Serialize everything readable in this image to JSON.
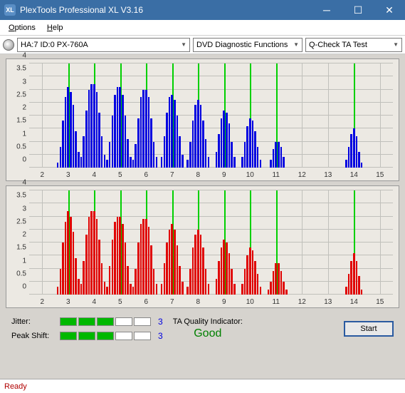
{
  "window": {
    "title": "PlexTools Professional XL V3.16"
  },
  "menu": {
    "options": "Options",
    "help": "Help"
  },
  "toolbar": {
    "drive": "HA:7 ID:0   PX-760A",
    "func": "DVD Diagnostic Functions",
    "test": "Q-Check TA Test"
  },
  "chart": {
    "ylim": [
      0,
      4
    ],
    "yticks": [
      0,
      0.5,
      1,
      1.5,
      2,
      2.5,
      3,
      3.5,
      4
    ],
    "xlim": [
      1.5,
      15.5
    ],
    "xticks": [
      2,
      3,
      4,
      5,
      6,
      7,
      8,
      9,
      10,
      11,
      12,
      13,
      14,
      15
    ],
    "greenlines": [
      3,
      4,
      5,
      6,
      7,
      8,
      9,
      10,
      11,
      14
    ],
    "barwidth": 0.07,
    "top": {
      "color": "#0000e0",
      "bars": [
        [
          2.6,
          0.2
        ],
        [
          2.7,
          0.8
        ],
        [
          2.8,
          1.8
        ],
        [
          2.9,
          2.7
        ],
        [
          3.0,
          3.1
        ],
        [
          3.1,
          2.9
        ],
        [
          3.2,
          2.4
        ],
        [
          3.3,
          1.4
        ],
        [
          3.4,
          0.6
        ],
        [
          3.5,
          0.4
        ],
        [
          3.6,
          1.2
        ],
        [
          3.7,
          2.2
        ],
        [
          3.8,
          3.0
        ],
        [
          3.9,
          3.2
        ],
        [
          4.0,
          3.2
        ],
        [
          4.1,
          2.9
        ],
        [
          4.2,
          2.1
        ],
        [
          4.3,
          1.2
        ],
        [
          4.4,
          0.5
        ],
        [
          4.5,
          0.3
        ],
        [
          4.6,
          1.0
        ],
        [
          4.7,
          2.0
        ],
        [
          4.8,
          2.8
        ],
        [
          4.9,
          3.1
        ],
        [
          5.0,
          3.1
        ],
        [
          5.1,
          2.8
        ],
        [
          5.2,
          2.0
        ],
        [
          5.3,
          1.1
        ],
        [
          5.4,
          0.4
        ],
        [
          5.5,
          0.3
        ],
        [
          5.6,
          0.9
        ],
        [
          5.7,
          1.9
        ],
        [
          5.8,
          2.7
        ],
        [
          5.9,
          3.0
        ],
        [
          6.0,
          3.0
        ],
        [
          6.1,
          2.7
        ],
        [
          6.2,
          1.9
        ],
        [
          6.3,
          1.0
        ],
        [
          6.4,
          0.4
        ],
        [
          6.6,
          0.4
        ],
        [
          6.7,
          1.2
        ],
        [
          6.8,
          2.1
        ],
        [
          6.9,
          2.7
        ],
        [
          7.0,
          2.8
        ],
        [
          7.1,
          2.6
        ],
        [
          7.2,
          2.0
        ],
        [
          7.3,
          1.2
        ],
        [
          7.4,
          0.5
        ],
        [
          7.6,
          0.3
        ],
        [
          7.7,
          1.0
        ],
        [
          7.8,
          1.8
        ],
        [
          7.9,
          2.4
        ],
        [
          8.0,
          2.6
        ],
        [
          8.1,
          2.4
        ],
        [
          8.2,
          1.8
        ],
        [
          8.3,
          1.1
        ],
        [
          8.4,
          0.4
        ],
        [
          8.7,
          0.6
        ],
        [
          8.8,
          1.3
        ],
        [
          8.9,
          1.9
        ],
        [
          9.0,
          2.2
        ],
        [
          9.1,
          2.1
        ],
        [
          9.2,
          1.7
        ],
        [
          9.3,
          1.0
        ],
        [
          9.4,
          0.4
        ],
        [
          9.7,
          0.4
        ],
        [
          9.8,
          1.0
        ],
        [
          9.9,
          1.6
        ],
        [
          10.0,
          1.9
        ],
        [
          10.1,
          1.8
        ],
        [
          10.2,
          1.4
        ],
        [
          10.3,
          0.8
        ],
        [
          10.4,
          0.3
        ],
        [
          10.8,
          0.3
        ],
        [
          10.9,
          0.7
        ],
        [
          11.0,
          1.0
        ],
        [
          11.1,
          1.0
        ],
        [
          11.2,
          0.8
        ],
        [
          11.3,
          0.4
        ],
        [
          13.7,
          0.3
        ],
        [
          13.8,
          0.8
        ],
        [
          13.9,
          1.3
        ],
        [
          14.0,
          1.5
        ],
        [
          14.1,
          1.2
        ],
        [
          14.2,
          0.6
        ],
        [
          14.3,
          0.2
        ]
      ]
    },
    "bottom": {
      "color": "#e00000",
      "bars": [
        [
          2.6,
          0.3
        ],
        [
          2.7,
          1.0
        ],
        [
          2.8,
          2.0
        ],
        [
          2.9,
          2.8
        ],
        [
          3.0,
          3.2
        ],
        [
          3.1,
          3.0
        ],
        [
          3.2,
          2.4
        ],
        [
          3.3,
          1.4
        ],
        [
          3.4,
          0.6
        ],
        [
          3.5,
          0.4
        ],
        [
          3.6,
          1.3
        ],
        [
          3.7,
          2.3
        ],
        [
          3.8,
          3.0
        ],
        [
          3.9,
          3.2
        ],
        [
          4.0,
          3.2
        ],
        [
          4.1,
          2.9
        ],
        [
          4.2,
          2.1
        ],
        [
          4.3,
          1.2
        ],
        [
          4.4,
          0.5
        ],
        [
          4.5,
          0.3
        ],
        [
          4.6,
          1.1
        ],
        [
          4.7,
          2.1
        ],
        [
          4.8,
          2.8
        ],
        [
          4.9,
          3.0
        ],
        [
          5.0,
          3.0
        ],
        [
          5.1,
          2.7
        ],
        [
          5.2,
          2.0
        ],
        [
          5.3,
          1.1
        ],
        [
          5.4,
          0.4
        ],
        [
          5.5,
          0.3
        ],
        [
          5.6,
          1.0
        ],
        [
          5.7,
          2.0
        ],
        [
          5.8,
          2.7
        ],
        [
          5.9,
          2.9
        ],
        [
          6.0,
          2.9
        ],
        [
          6.1,
          2.6
        ],
        [
          6.2,
          1.9
        ],
        [
          6.3,
          1.0
        ],
        [
          6.4,
          0.4
        ],
        [
          6.6,
          0.4
        ],
        [
          6.7,
          1.2
        ],
        [
          6.8,
          2.0
        ],
        [
          6.9,
          2.5
        ],
        [
          7.0,
          2.7
        ],
        [
          7.1,
          2.5
        ],
        [
          7.2,
          1.9
        ],
        [
          7.3,
          1.1
        ],
        [
          7.4,
          0.5
        ],
        [
          7.6,
          0.3
        ],
        [
          7.7,
          1.0
        ],
        [
          7.8,
          1.8
        ],
        [
          7.9,
          2.3
        ],
        [
          8.0,
          2.5
        ],
        [
          8.1,
          2.3
        ],
        [
          8.2,
          1.8
        ],
        [
          8.3,
          1.0
        ],
        [
          8.4,
          0.4
        ],
        [
          8.7,
          0.6
        ],
        [
          8.8,
          1.3
        ],
        [
          8.9,
          1.8
        ],
        [
          9.0,
          2.1
        ],
        [
          9.1,
          2.0
        ],
        [
          9.2,
          1.6
        ],
        [
          9.3,
          1.0
        ],
        [
          9.4,
          0.4
        ],
        [
          9.7,
          0.4
        ],
        [
          9.8,
          1.0
        ],
        [
          9.9,
          1.5
        ],
        [
          10.0,
          1.8
        ],
        [
          10.1,
          1.7
        ],
        [
          10.2,
          1.3
        ],
        [
          10.3,
          0.8
        ],
        [
          10.4,
          0.3
        ],
        [
          10.7,
          0.2
        ],
        [
          10.8,
          0.5
        ],
        [
          10.9,
          0.9
        ],
        [
          11.0,
          1.2
        ],
        [
          11.1,
          1.2
        ],
        [
          11.2,
          0.9
        ],
        [
          11.3,
          0.5
        ],
        [
          11.4,
          0.2
        ],
        [
          13.7,
          0.3
        ],
        [
          13.8,
          0.8
        ],
        [
          13.9,
          1.3
        ],
        [
          14.0,
          1.6
        ],
        [
          14.1,
          1.3
        ],
        [
          14.2,
          0.7
        ],
        [
          14.3,
          0.2
        ]
      ]
    }
  },
  "metrics": {
    "jitter": {
      "label": "Jitter:",
      "segments": [
        1,
        1,
        1,
        0,
        0
      ],
      "value": "3"
    },
    "peakshift": {
      "label": "Peak Shift:",
      "segments": [
        1,
        1,
        1,
        0,
        0
      ],
      "value": "3"
    },
    "ta_label": "TA Quality Indicator:",
    "ta_value": "Good",
    "start": "Start"
  },
  "status": "Ready"
}
